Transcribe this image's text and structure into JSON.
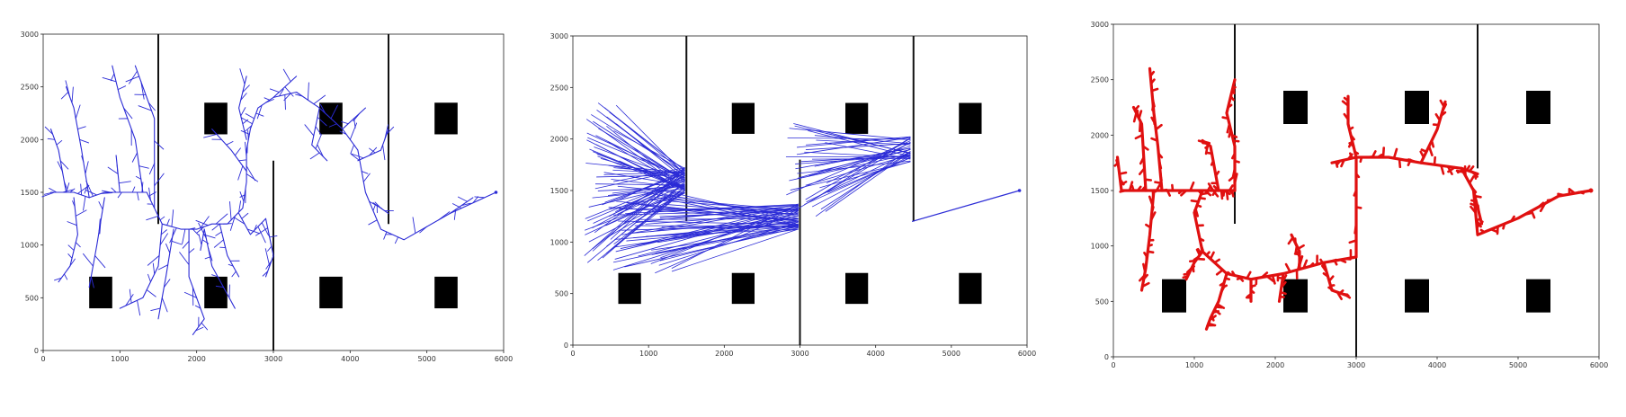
{
  "chart_data": [
    {
      "type": "path-planning",
      "algorithm_marks": "tree",
      "title": "",
      "xlabel": "",
      "ylabel": "",
      "xlim": [
        0,
        6000
      ],
      "ylim": [
        0,
        3000
      ],
      "x_ticks": [
        "0",
        "1000",
        "2000",
        "3000",
        "4000",
        "5000",
        "6000"
      ],
      "y_ticks": [
        "0",
        "500",
        "1000",
        "1500",
        "2000",
        "2500",
        "3000"
      ],
      "walls": [
        [
          [
            1500,
            3000
          ],
          [
            1500,
            1200
          ]
        ],
        [
          [
            4500,
            3000
          ],
          [
            4500,
            1200
          ]
        ],
        [
          [
            3000,
            0
          ],
          [
            3000,
            1800
          ]
        ]
      ],
      "obstacles": [
        [
          750,
          550
        ],
        [
          2250,
          550
        ],
        [
          3750,
          550
        ],
        [
          5250,
          550
        ],
        [
          2250,
          2200
        ],
        [
          3750,
          2200
        ],
        [
          5250,
          2200
        ]
      ],
      "obstacle_size": [
        300,
        300
      ],
      "color": "#2b2bd6",
      "goal": [
        5900,
        1500
      ],
      "trunk": [
        [
          5900,
          1500
        ],
        [
          5300,
          1300
        ],
        [
          4700,
          1050
        ],
        [
          4400,
          1150
        ],
        [
          4200,
          1500
        ],
        [
          4100,
          1900
        ],
        [
          3900,
          2100
        ],
        [
          3600,
          2300
        ],
        [
          3300,
          2450
        ],
        [
          3000,
          2400
        ],
        [
          2800,
          2300
        ],
        [
          2700,
          2100
        ],
        [
          2650,
          1900
        ],
        [
          2650,
          1600
        ],
        [
          2600,
          1350
        ],
        [
          2400,
          1200
        ],
        [
          2200,
          1200
        ],
        [
          2000,
          1150
        ],
        [
          1800,
          1150
        ],
        [
          1550,
          1200
        ],
        [
          1450,
          1350
        ],
        [
          1350,
          1500
        ],
        [
          1100,
          1500
        ],
        [
          800,
          1500
        ],
        [
          600,
          1450
        ],
        [
          400,
          1500
        ],
        [
          200,
          1500
        ],
        [
          100,
          1500
        ]
      ],
      "branches": [
        [
          [
            1450,
            1350
          ],
          [
            1450,
            2200
          ],
          [
            1300,
            2500
          ],
          [
            1200,
            2700
          ]
        ],
        [
          [
            1300,
            1500
          ],
          [
            1200,
            2000
          ],
          [
            1000,
            2400
          ],
          [
            900,
            2700
          ]
        ],
        [
          [
            600,
            1450
          ],
          [
            500,
            1900
          ],
          [
            400,
            2300
          ],
          [
            300,
            2500
          ]
        ],
        [
          [
            300,
            1500
          ],
          [
            200,
            1900
          ],
          [
            100,
            2100
          ]
        ],
        [
          [
            400,
            1450
          ],
          [
            450,
            1100
          ],
          [
            350,
            800
          ],
          [
            200,
            650
          ]
        ],
        [
          [
            800,
            1450
          ],
          [
            700,
            1000
          ],
          [
            600,
            600
          ]
        ],
        [
          [
            1550,
            1200
          ],
          [
            1500,
            800
          ],
          [
            1300,
            500
          ],
          [
            1000,
            400
          ]
        ],
        [
          [
            1700,
            1150
          ],
          [
            1600,
            700
          ],
          [
            1500,
            300
          ]
        ],
        [
          [
            1900,
            1150
          ],
          [
            1900,
            700
          ],
          [
            2100,
            300
          ],
          [
            1950,
            150
          ]
        ],
        [
          [
            2100,
            1150
          ],
          [
            2200,
            800
          ],
          [
            2500,
            400
          ]
        ],
        [
          [
            2300,
            1200
          ],
          [
            2400,
            900
          ],
          [
            2550,
            700
          ]
        ],
        [
          [
            2550,
            1300
          ],
          [
            2700,
            1100
          ],
          [
            2900,
            1250
          ]
        ],
        [
          [
            2900,
            1250
          ],
          [
            3000,
            900
          ],
          [
            2900,
            700
          ]
        ],
        [
          [
            2650,
            1700
          ],
          [
            2450,
            1900
          ],
          [
            2200,
            2100
          ]
        ],
        [
          [
            2650,
            2000
          ],
          [
            2550,
            2300
          ],
          [
            2650,
            2600
          ]
        ],
        [
          [
            3000,
            2400
          ],
          [
            3300,
            2600
          ]
        ],
        [
          [
            3900,
            2100
          ],
          [
            4200,
            2300
          ]
        ],
        [
          [
            4100,
            1800
          ],
          [
            4400,
            1900
          ],
          [
            4500,
            2100
          ]
        ],
        [
          [
            4300,
            1400
          ],
          [
            4500,
            1300
          ]
        ],
        [
          [
            5300,
            1300
          ],
          [
            5600,
            1450
          ]
        ],
        [
          [
            1000,
            1500
          ],
          [
            950,
            1850
          ]
        ],
        [
          [
            2100,
            1150
          ],
          [
            2050,
            950
          ]
        ],
        [
          [
            3600,
            2300
          ],
          [
            3500,
            1950
          ],
          [
            3700,
            1800
          ]
        ]
      ]
    },
    {
      "type": "path-planning",
      "algorithm_marks": "dense-rays",
      "title": "",
      "xlabel": "",
      "ylabel": "",
      "xlim": [
        0,
        6000
      ],
      "ylim": [
        0,
        3000
      ],
      "x_ticks": [
        "0",
        "1000",
        "2000",
        "3000",
        "4000",
        "5000",
        "6000"
      ],
      "y_ticks": [
        "0",
        "500",
        "1000",
        "1500",
        "2000",
        "2500",
        "3000"
      ],
      "walls": [
        [
          [
            1500,
            3000
          ],
          [
            1500,
            1200
          ]
        ],
        [
          [
            4500,
            3000
          ],
          [
            4500,
            1200
          ]
        ],
        [
          [
            3000,
            0
          ],
          [
            3000,
            1800
          ]
        ]
      ],
      "obstacles": [
        [
          750,
          550
        ],
        [
          2250,
          550
        ],
        [
          3750,
          550
        ],
        [
          5250,
          550
        ],
        [
          2250,
          2200
        ],
        [
          3750,
          2200
        ],
        [
          5250,
          2200
        ]
      ],
      "obstacle_size": [
        300,
        300
      ],
      "color": "#2b2bd6",
      "goal": [
        5900,
        1500
      ],
      "fans": [
        {
          "apex": [
            1480,
            1600
          ],
          "y_range": [
            800,
            2350
          ],
          "x_range": [
            150,
            1480
          ],
          "count": 70
        },
        {
          "apex": [
            2980,
            1250
          ],
          "y_range": [
            700,
            1500
          ],
          "x_range": [
            450,
            2950
          ],
          "count": 55
        },
        {
          "apex": [
            4460,
            1900
          ],
          "y_range": [
            1250,
            2150
          ],
          "x_range": [
            2800,
            4460
          ],
          "count": 40
        }
      ],
      "path": [
        [
          5900,
          1500
        ],
        [
          4480,
          1200
        ]
      ]
    },
    {
      "type": "path-planning",
      "algorithm_marks": "thick-tree",
      "title": "",
      "xlabel": "",
      "ylabel": "",
      "xlim": [
        0,
        6000
      ],
      "ylim": [
        0,
        3000
      ],
      "x_ticks": [
        "0",
        "1000",
        "2000",
        "3000",
        "4000",
        "5000",
        "6000"
      ],
      "y_ticks": [
        "0",
        "500",
        "1000",
        "1500",
        "2000",
        "2500",
        "3000"
      ],
      "walls": [
        [
          [
            1500,
            3000
          ],
          [
            1500,
            1200
          ]
        ],
        [
          [
            4500,
            3000
          ],
          [
            4500,
            1700
          ]
        ],
        [
          [
            3000,
            0
          ],
          [
            3000,
            1800
          ]
        ]
      ],
      "obstacles": [
        [
          750,
          550
        ],
        [
          2250,
          550
        ],
        [
          3750,
          550
        ],
        [
          5250,
          550
        ],
        [
          2250,
          2250
        ],
        [
          3750,
          2250
        ],
        [
          5250,
          2250
        ]
      ],
      "obstacle_size": [
        300,
        300
      ],
      "color": "#e01010",
      "goal": [
        5900,
        1500
      ],
      "trunk": [
        [
          5900,
          1500
        ],
        [
          5500,
          1450
        ],
        [
          5000,
          1250
        ],
        [
          4500,
          1100
        ],
        [
          4450,
          1500
        ],
        [
          4300,
          1700
        ],
        [
          3800,
          1750
        ],
        [
          3400,
          1800
        ],
        [
          3000,
          1800
        ],
        [
          3000,
          900
        ],
        [
          2600,
          850
        ],
        [
          2100,
          750
        ],
        [
          1700,
          700
        ],
        [
          1400,
          750
        ],
        [
          1100,
          950
        ],
        [
          1000,
          1300
        ],
        [
          1100,
          1500
        ],
        [
          1300,
          1500
        ],
        [
          1500,
          1500
        ],
        [
          1100,
          1500
        ],
        [
          800,
          1500
        ],
        [
          400,
          1500
        ],
        [
          100,
          1500
        ]
      ],
      "branches": [
        [
          [
            1500,
            1500
          ],
          [
            1500,
            1900
          ],
          [
            1400,
            2200
          ],
          [
            1500,
            2500
          ]
        ],
        [
          [
            1300,
            1500
          ],
          [
            1200,
            1900
          ],
          [
            1100,
            1950
          ]
        ],
        [
          [
            600,
            1500
          ],
          [
            550,
            1900
          ],
          [
            500,
            2200
          ],
          [
            450,
            2600
          ]
        ],
        [
          [
            400,
            1500
          ],
          [
            350,
            2100
          ],
          [
            250,
            2250
          ]
        ],
        [
          [
            100,
            1500
          ],
          [
            50,
            1800
          ]
        ],
        [
          [
            500,
            1500
          ],
          [
            450,
            1100
          ],
          [
            400,
            800
          ],
          [
            350,
            600
          ]
        ],
        [
          [
            1400,
            750
          ],
          [
            1300,
            500
          ],
          [
            1200,
            350
          ],
          [
            1150,
            250
          ]
        ],
        [
          [
            1700,
            700
          ],
          [
            1700,
            500
          ]
        ],
        [
          [
            2300,
            800
          ],
          [
            2300,
            950
          ],
          [
            2200,
            1100
          ]
        ],
        [
          [
            2600,
            850
          ],
          [
            2700,
            600
          ],
          [
            2900,
            550
          ]
        ],
        [
          [
            3000,
            1800
          ],
          [
            2900,
            2100
          ],
          [
            2900,
            2350
          ]
        ],
        [
          [
            3000,
            1800
          ],
          [
            2700,
            1750
          ]
        ],
        [
          [
            3800,
            1750
          ],
          [
            4000,
            2050
          ],
          [
            4100,
            2300
          ]
        ],
        [
          [
            4300,
            1700
          ],
          [
            4500,
            1650
          ]
        ],
        [
          [
            4450,
            1500
          ],
          [
            4550,
            1200
          ]
        ],
        [
          [
            1100,
            950
          ],
          [
            1000,
            850
          ],
          [
            900,
            700
          ]
        ],
        [
          [
            2100,
            750
          ],
          [
            2050,
            500
          ]
        ]
      ]
    }
  ]
}
